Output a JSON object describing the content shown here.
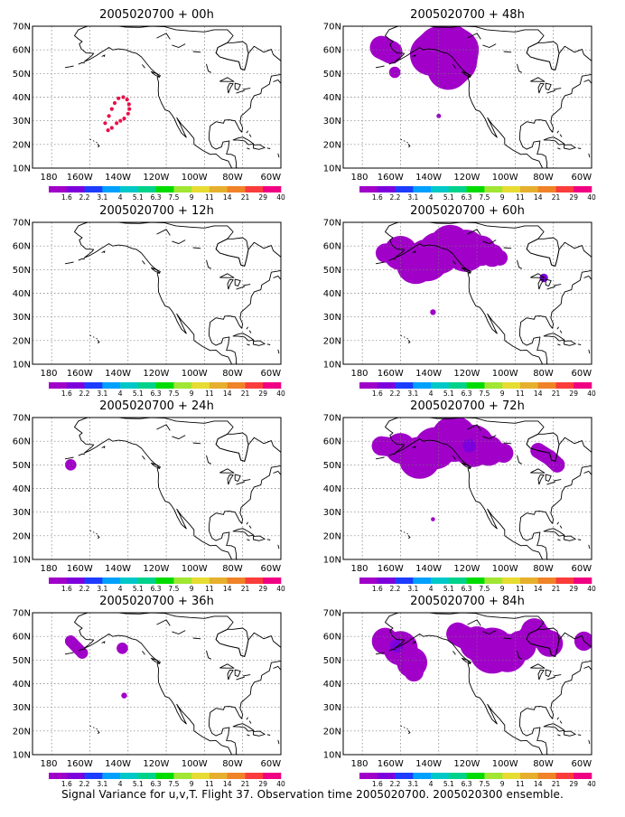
{
  "caption": "Signal Variance for u,v,T. Flight 37. Observation time 2005020700. 2005020300 ensemble.",
  "axes": {
    "lon_labels": [
      "180",
      "160W",
      "140W",
      "120W",
      "100W",
      "80W",
      "60W"
    ],
    "lat_labels": [
      "10N",
      "20N",
      "30N",
      "40N",
      "50N",
      "60N",
      "70N"
    ]
  },
  "colorbar": {
    "levels": [
      "1.6",
      "2.2",
      "3.1",
      "4",
      "5.1",
      "6.3",
      "7.5",
      "9",
      "11",
      "14",
      "21",
      "29",
      "40"
    ],
    "colors": [
      "#a000c8",
      "#7d00dc",
      "#1e3cff",
      "#00a0ff",
      "#00c8c8",
      "#00d28c",
      "#00dc00",
      "#a0e632",
      "#e6dc32",
      "#e6af2d",
      "#f08228",
      "#fa3c3c",
      "#f00082"
    ]
  },
  "panels": [
    {
      "title": "2005020700 + 00h",
      "icon": "dot-trajectory"
    },
    {
      "title": "2005020700 + 48h",
      "icon": "variance-blobs"
    },
    {
      "title": "2005020700 + 12h",
      "icon": "variance-blobs"
    },
    {
      "title": "2005020700 + 60h",
      "icon": "variance-blobs"
    },
    {
      "title": "2005020700 + 24h",
      "icon": "variance-blobs"
    },
    {
      "title": "2005020700 + 72h",
      "icon": "variance-blobs"
    },
    {
      "title": "2005020700 + 36h",
      "icon": "variance-blobs"
    },
    {
      "title": "2005020700 + 84h",
      "icon": "variance-blobs"
    }
  ]
}
